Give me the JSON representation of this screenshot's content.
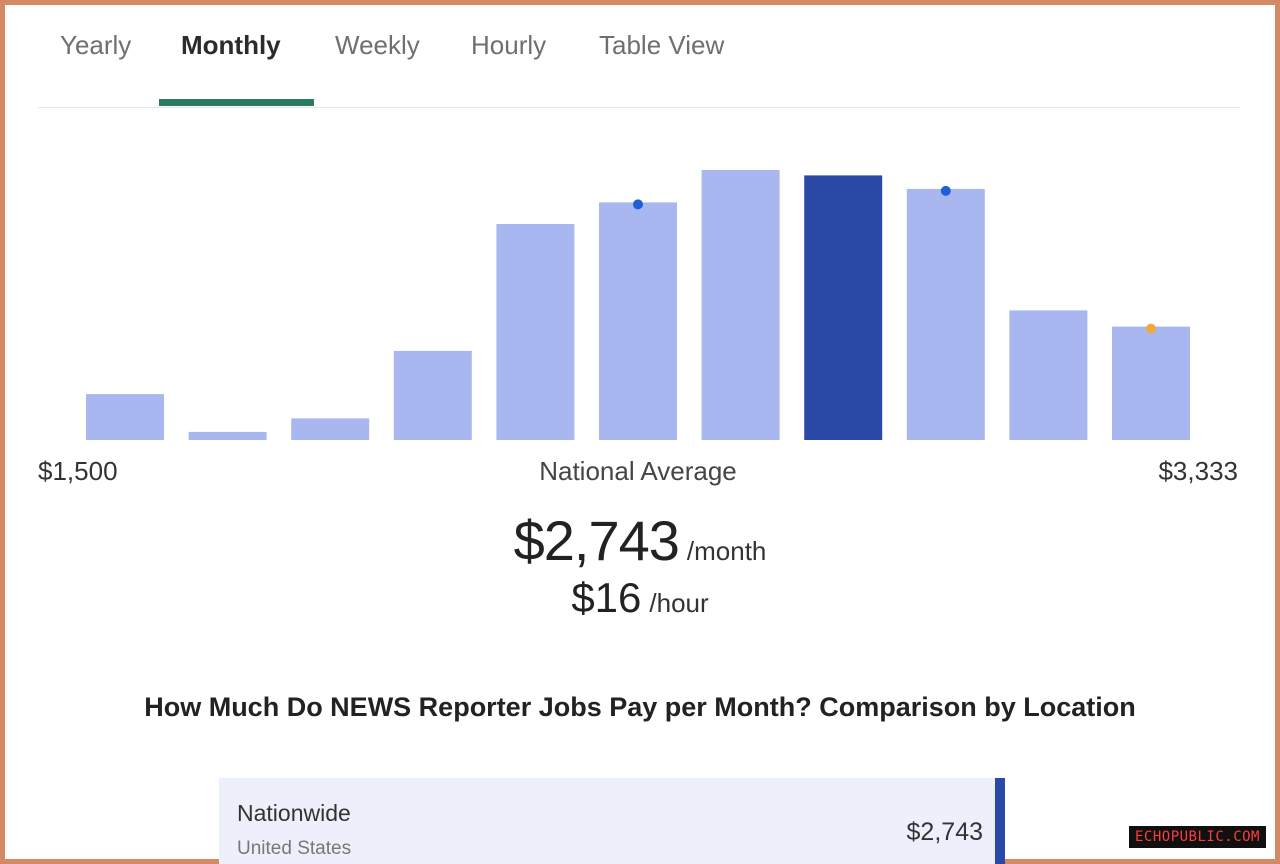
{
  "tabs": [
    {
      "label": "Yearly",
      "active": false
    },
    {
      "label": "Monthly",
      "active": true
    },
    {
      "label": "Weekly",
      "active": false
    },
    {
      "label": "Hourly",
      "active": false
    },
    {
      "label": "Table View",
      "active": false
    }
  ],
  "colors": {
    "accent_underline": "#2a7b5f",
    "bar": "#a8b7f0",
    "bar_highlight": "#2a48a6",
    "dot_blue": "#1f5fd6",
    "dot_orange": "#f0a840",
    "frame_border": "#d48a63"
  },
  "chart_data": {
    "type": "bar",
    "title": "",
    "xlabel": "",
    "ylabel": "",
    "x_min_label": "$1,500",
    "x_max_label": "$3,333",
    "center_label": "National Average",
    "values": [
      17,
      3,
      8,
      33,
      80,
      88,
      100,
      98,
      93,
      48,
      42
    ],
    "highlight_index": 7,
    "markers": [
      {
        "index": 5,
        "color": "blue"
      },
      {
        "index": 8,
        "color": "blue"
      },
      {
        "index": 10,
        "color": "orange"
      }
    ]
  },
  "summary": {
    "monthly_value": "$2,743",
    "monthly_unit": "/month",
    "hourly_value": "$16",
    "hourly_unit": "/hour"
  },
  "section": {
    "title": "How Much Do NEWS Reporter Jobs Pay per Month? Comparison by Location"
  },
  "location_card": {
    "name": "Nationwide",
    "sub": "United States",
    "value": "$2,743"
  },
  "watermark": "ECHOPUBLIC.COM"
}
